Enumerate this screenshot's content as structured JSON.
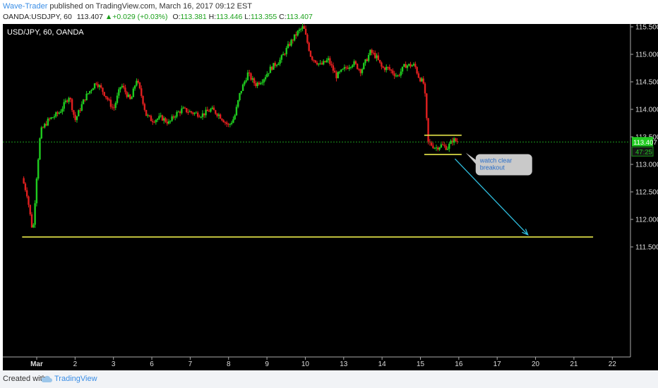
{
  "header": {
    "author": "Wave-Trader",
    "published": " published on TradingView.com, March 16, 2017 09:12 EST",
    "symbol": "OANDA:USDJPY, 60",
    "last": "113.407",
    "change": "+0.029 (+0.03%)",
    "o_label": "O:",
    "o_val": "113.381",
    "h_label": "H:",
    "h_val": "113.446",
    "l_label": "L:",
    "l_val": "113.355",
    "c_label": "C:",
    "c_val": "113.407"
  },
  "footer": {
    "created": "Created with",
    "brand": "TradingView"
  },
  "colors": {
    "background": "#000000",
    "up": "#1fcc1f",
    "down": "#e01f1f",
    "level_line": "#e8e84a",
    "arrow": "#2fbfe0",
    "price_label": "#22cc22"
  },
  "chart_data": {
    "type": "candlestick",
    "title": "USD/JPY, 60, OANDA",
    "ylim": [
      111.0,
      115.55
    ],
    "y_ticks": [
      "115.500",
      "115.000",
      "114.500",
      "114.000",
      "113.500",
      "113.000",
      "112.500",
      "112.000",
      "111.500"
    ],
    "x_ticks": [
      "Mar",
      "2",
      "3",
      "6",
      "7",
      "8",
      "9",
      "10",
      "13",
      "14",
      "15",
      "16",
      "17",
      "20",
      "21",
      "22"
    ],
    "x_tick_positions": [
      1,
      2,
      3,
      4,
      5,
      6,
      7,
      8,
      9,
      10,
      11,
      12,
      13,
      14,
      15,
      16
    ],
    "xlim": [
      0.62,
      16.0
    ],
    "path": [
      [
        0.62,
        112.75
      ],
      [
        0.75,
        112.45
      ],
      [
        0.9,
        111.75
      ],
      [
        1.0,
        112.8
      ],
      [
        1.1,
        113.6
      ],
      [
        1.3,
        113.8
      ],
      [
        1.6,
        113.95
      ],
      [
        1.85,
        114.25
      ],
      [
        2.0,
        113.8
      ],
      [
        2.25,
        114.2
      ],
      [
        2.55,
        114.5
      ],
      [
        2.75,
        114.3
      ],
      [
        3.0,
        114.0
      ],
      [
        3.2,
        114.45
      ],
      [
        3.45,
        114.15
      ],
      [
        3.6,
        114.55
      ],
      [
        3.75,
        114.2
      ],
      [
        3.85,
        113.9
      ],
      [
        4.0,
        113.8
      ],
      [
        4.25,
        113.85
      ],
      [
        4.45,
        113.75
      ],
      [
        4.6,
        113.9
      ],
      [
        4.8,
        114.0
      ],
      [
        5.0,
        113.95
      ],
      [
        5.3,
        113.9
      ],
      [
        5.55,
        114.0
      ],
      [
        5.75,
        113.9
      ],
      [
        6.0,
        113.7
      ],
      [
        6.15,
        113.85
      ],
      [
        6.3,
        114.3
      ],
      [
        6.5,
        114.65
      ],
      [
        6.7,
        114.45
      ],
      [
        6.9,
        114.55
      ],
      [
        7.1,
        114.75
      ],
      [
        7.35,
        114.9
      ],
      [
        7.6,
        115.2
      ],
      [
        7.8,
        115.4
      ],
      [
        7.95,
        115.5
      ],
      [
        8.15,
        114.95
      ],
      [
        8.4,
        114.8
      ],
      [
        8.6,
        114.9
      ],
      [
        8.8,
        114.6
      ],
      [
        9.05,
        114.75
      ],
      [
        9.25,
        114.85
      ],
      [
        9.45,
        114.7
      ],
      [
        9.7,
        115.05
      ],
      [
        9.85,
        114.95
      ],
      [
        10.0,
        114.75
      ],
      [
        10.15,
        114.75
      ],
      [
        10.4,
        114.6
      ],
      [
        10.6,
        114.8
      ],
      [
        10.85,
        114.8
      ],
      [
        10.95,
        114.6
      ],
      [
        11.1,
        114.45
      ],
      [
        11.2,
        113.4
      ],
      [
        11.4,
        113.3
      ],
      [
        11.55,
        113.35
      ],
      [
        11.7,
        113.3
      ],
      [
        11.85,
        113.45
      ],
      [
        12.0,
        113.4
      ]
    ],
    "resistance": 113.53,
    "support": 113.18,
    "box_x": [
      11.1,
      12.0
    ],
    "long_support": 111.68,
    "long_support_x": [
      0.62,
      15.5
    ],
    "last_price": "113.407",
    "last_value": 113.407,
    "countdown": "47:25",
    "annotation": "watch clear breakout",
    "projection_arrow": {
      "from": [
        11.9,
        113.1
      ],
      "to": [
        13.8,
        111.72
      ]
    }
  }
}
